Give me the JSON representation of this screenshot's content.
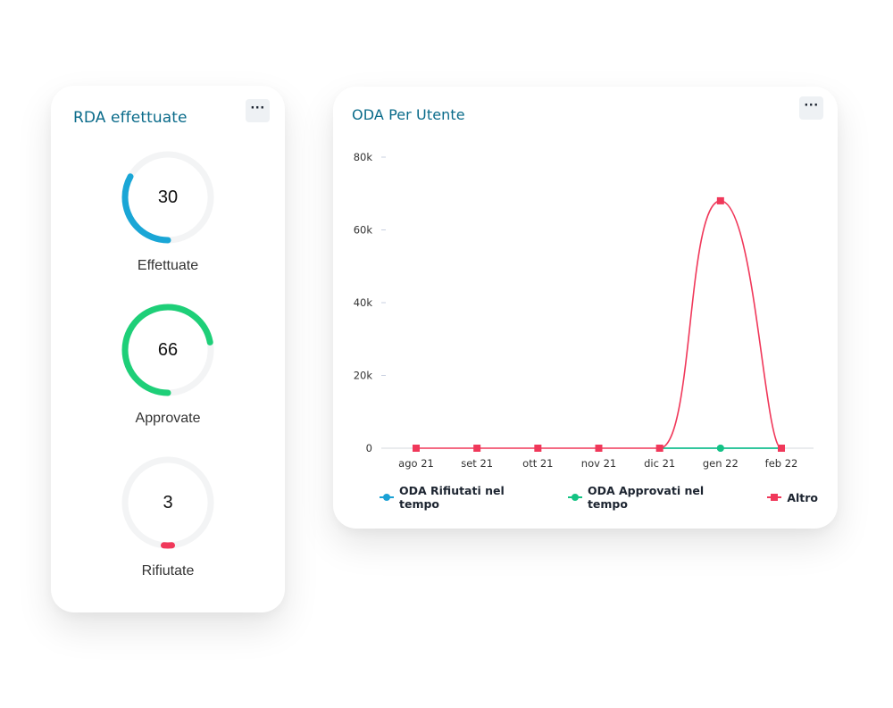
{
  "rda_card": {
    "title": "RDA effettuate",
    "menu_label": "···",
    "gauges": [
      {
        "value": "30",
        "label": "Effettuate",
        "fraction": 0.33,
        "color": "#1aa6d6"
      },
      {
        "value": "66",
        "label": "Approvate",
        "fraction": 0.72,
        "color": "#1ecf78"
      },
      {
        "value": "3",
        "label": "Rifiutate",
        "fraction": 0.03,
        "color": "#f0385a"
      }
    ],
    "track_color": "#f3f4f5"
  },
  "oda_card": {
    "title": "ODA Per Utente",
    "menu_label": "···"
  },
  "chart_data": {
    "type": "line",
    "title": "ODA Per Utente",
    "categories": [
      "ago 21",
      "set 21",
      "ott 21",
      "nov 21",
      "dic 21",
      "gen 22",
      "feb 22"
    ],
    "y_ticks": [
      "0",
      "20k",
      "40k",
      "60k",
      "80k"
    ],
    "ylim": [
      0,
      80000
    ],
    "series": [
      {
        "name": "ODA Rifiutati nel tempo",
        "color": "#1ba1d5",
        "marker": "circle",
        "values": [
          null,
          null,
          null,
          null,
          0,
          0,
          0
        ]
      },
      {
        "name": "ODA Approvati nel tempo",
        "color": "#14c383",
        "marker": "circle",
        "values": [
          null,
          null,
          null,
          null,
          0,
          0,
          0
        ]
      },
      {
        "name": "Altro",
        "color": "#f0385a",
        "marker": "square",
        "values": [
          0,
          0,
          0,
          0,
          0,
          68000,
          0
        ]
      }
    ],
    "legend_position": "bottom",
    "grid": false
  }
}
